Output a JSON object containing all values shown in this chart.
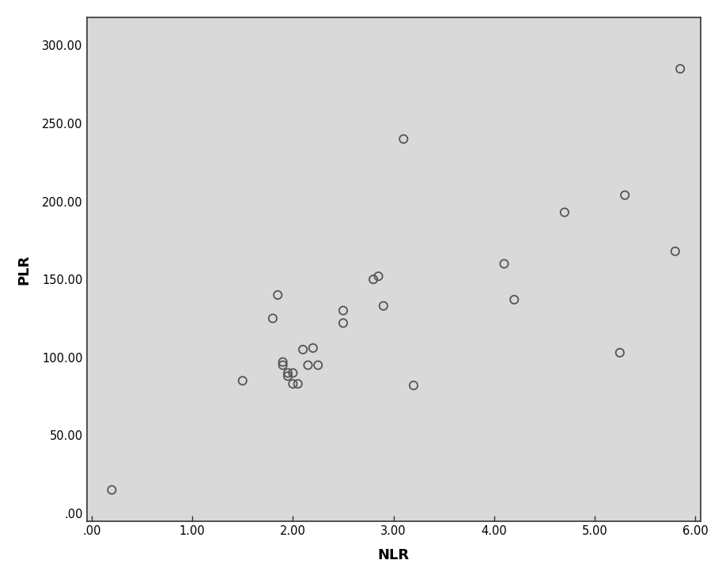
{
  "x": [
    0.2,
    1.5,
    1.8,
    1.85,
    1.9,
    1.9,
    1.95,
    1.95,
    2.0,
    2.0,
    2.05,
    2.1,
    2.15,
    2.2,
    2.25,
    2.5,
    2.5,
    2.8,
    2.85,
    2.9,
    3.1,
    3.2,
    4.1,
    4.2,
    4.7,
    5.25,
    5.3,
    5.8,
    5.85
  ],
  "y": [
    15,
    85,
    125,
    140,
    95,
    97,
    90,
    88,
    90,
    83,
    83,
    105,
    95,
    106,
    95,
    130,
    122,
    150,
    152,
    133,
    240,
    82,
    160,
    137,
    193,
    103,
    204,
    168,
    285
  ],
  "xlim": [
    -0.05,
    6.05
  ],
  "ylim": [
    -5.0,
    318.0
  ],
  "xticks": [
    0.0,
    1.0,
    2.0,
    3.0,
    4.0,
    5.0,
    6.0
  ],
  "yticks": [
    0.0,
    50.0,
    100.0,
    150.0,
    200.0,
    250.0,
    300.0
  ],
  "xtick_labels": [
    ".00",
    "1.00",
    "2.00",
    "3.00",
    "4.00",
    "5.00",
    "6.00"
  ],
  "ytick_labels": [
    ".00",
    "50.00",
    "100.00",
    "150.00",
    "200.00",
    "250.00",
    "300.00"
  ],
  "xlabel": "NLR",
  "ylabel": "PLR",
  "marker_edgecolor": "#555555",
  "marker_size": 55,
  "plot_bg_color": "#d9d9d9",
  "outer_bg": "#ffffff",
  "spine_color": "#333333",
  "tick_label_fontsize": 10.5,
  "axis_label_fontsize": 13
}
